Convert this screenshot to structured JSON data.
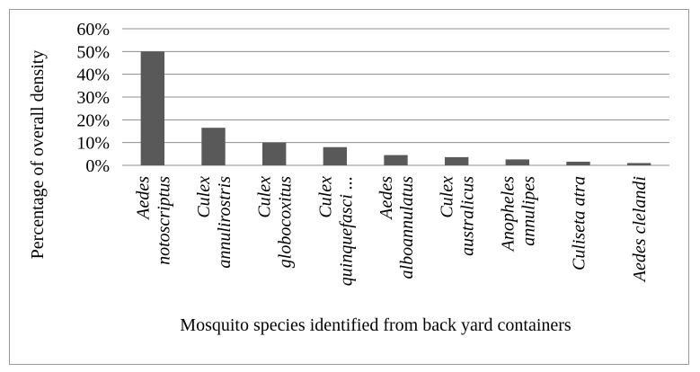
{
  "chart_data": {
    "type": "bar",
    "categories": [
      [
        "Aedes",
        "notoscriptus"
      ],
      [
        "Culex",
        "annulirostris"
      ],
      [
        "Culex",
        "globocoxitus"
      ],
      [
        "Culex",
        "quinquefasci ..."
      ],
      [
        "Aedes",
        "alboannulatus"
      ],
      [
        "Culex",
        "australicus"
      ],
      [
        "Anopheles",
        "annulipes"
      ],
      [
        "Culiseta atra"
      ],
      [
        "Aedes clelandi"
      ]
    ],
    "values": [
      0.5,
      0.165,
      0.1,
      0.08,
      0.045,
      0.036,
      0.026,
      0.016,
      0.01
    ],
    "ylim": [
      0,
      0.6
    ],
    "yticks": [
      "0%",
      "10%",
      "20%",
      "30%",
      "40%",
      "50%",
      "60%"
    ],
    "xlabel": "Mosquito species identified from back yard containers",
    "ylabel": "Percentage of overall density",
    "grid": true,
    "bar_color": "#595959"
  }
}
